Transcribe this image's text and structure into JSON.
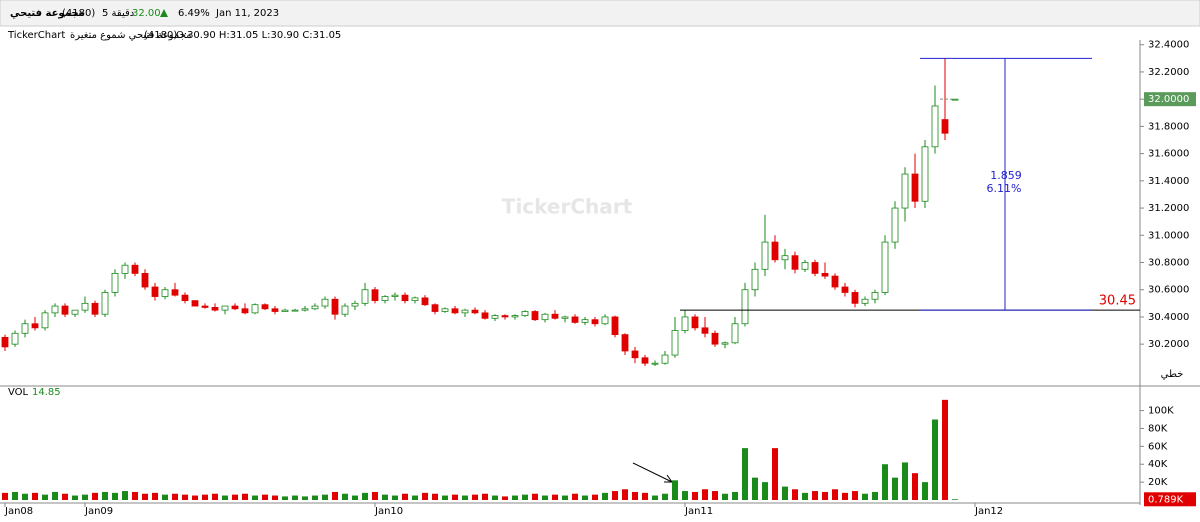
{
  "header": {
    "name": "مجموعة فتيحي",
    "code": "(4180)",
    "interval": "5 دقيقة",
    "price": "32.00",
    "change": "6.49%",
    "date": "Jan 11, 2023"
  },
  "info": {
    "brand": "TickerChart",
    "description": "مجموعة فتيحي شموع متغيرة",
    "code": "(4180)",
    "ohlc": "O:30.90 H:31.05 L:30.90 C:31.05"
  },
  "watermark": "TickerChart",
  "chart_data": {
    "type": "candlestick",
    "up_color": "#1a8a1a",
    "down_color": "#e00000",
    "ylim": [
      29.9,
      32.42
    ],
    "yticks": [
      {
        "value": 32.4,
        "label": "32.4000"
      },
      {
        "value": 32.2,
        "label": "32.2000"
      },
      {
        "value": 32.0,
        "label": "32.0000"
      },
      {
        "value": 31.8,
        "label": "31.8000"
      },
      {
        "value": 31.6,
        "label": "31.6000"
      },
      {
        "value": 31.4,
        "label": "31.4000"
      },
      {
        "value": 31.2,
        "label": "31.2000"
      },
      {
        "value": 31.0,
        "label": "31.0000"
      },
      {
        "value": 30.8,
        "label": "30.8000"
      },
      {
        "value": 30.6,
        "label": "30.6000"
      },
      {
        "value": 30.4,
        "label": "30.4000"
      },
      {
        "value": 30.2,
        "label": "30.2000"
      }
    ],
    "last_price": {
      "value": 32.0,
      "label": "32.0000"
    },
    "level": {
      "value": 30.45,
      "label": "30.45"
    },
    "measure": {
      "high": 32.3,
      "low": 30.45,
      "change_label": "1.859",
      "percent_label": "6.11%"
    },
    "scale_label": "خطي",
    "volume_title": "VOL",
    "volume_value": "14.85",
    "volume_ylim": [
      0,
      123000
    ],
    "volume_ticks": [
      {
        "value": 100000,
        "label": "100K"
      },
      {
        "value": 80000,
        "label": "80K"
      },
      {
        "value": 60000,
        "label": "60K"
      },
      {
        "value": 40000,
        "label": "40K"
      },
      {
        "value": 20000,
        "label": "20K"
      }
    ],
    "last_volume": {
      "value": 789,
      "label": "0.789K"
    },
    "categories": [
      "Jan08",
      null,
      null,
      null,
      null,
      null,
      null,
      null,
      "Jan09",
      null,
      null,
      null,
      null,
      null,
      null,
      null,
      null,
      null,
      null,
      null,
      null,
      null,
      null,
      null,
      null,
      null,
      null,
      null,
      null,
      null,
      null,
      null,
      null,
      null,
      null,
      null,
      null,
      "Jan10",
      null,
      null,
      null,
      null,
      null,
      null,
      null,
      null,
      null,
      null,
      null,
      null,
      null,
      null,
      null,
      null,
      null,
      null,
      null,
      null,
      null,
      null,
      null,
      null,
      null,
      null,
      null,
      null,
      null,
      null,
      "Jan11",
      null,
      null,
      null,
      null,
      null,
      null,
      null,
      null,
      null,
      null,
      null,
      null,
      null,
      null,
      null,
      null,
      null,
      null,
      null,
      null,
      null,
      null,
      null,
      null,
      null,
      null,
      null,
      null,
      "Jan12"
    ],
    "candles": [
      [
        30.25,
        30.27,
        30.15,
        30.18,
        8000
      ],
      [
        30.2,
        30.3,
        30.18,
        30.28,
        9000
      ],
      [
        30.28,
        30.38,
        30.25,
        30.35,
        7000
      ],
      [
        30.35,
        30.4,
        30.3,
        30.32,
        8000
      ],
      [
        30.32,
        30.45,
        30.3,
        30.43,
        6000
      ],
      [
        30.43,
        30.5,
        30.4,
        30.48,
        9000
      ],
      [
        30.48,
        30.5,
        30.4,
        30.42,
        7000
      ],
      [
        30.42,
        30.45,
        30.4,
        30.45,
        5000
      ],
      [
        30.45,
        30.55,
        30.43,
        30.5,
        6000
      ],
      [
        30.5,
        30.52,
        30.4,
        30.42,
        8000
      ],
      [
        30.42,
        30.6,
        30.4,
        30.58,
        9000
      ],
      [
        30.58,
        30.75,
        30.55,
        30.72,
        8000
      ],
      [
        30.72,
        30.8,
        30.68,
        30.78,
        10000
      ],
      [
        30.78,
        30.8,
        30.7,
        30.72,
        9000
      ],
      [
        30.72,
        30.75,
        30.6,
        30.62,
        7000
      ],
      [
        30.62,
        30.65,
        30.52,
        30.55,
        8000
      ],
      [
        30.55,
        30.62,
        30.53,
        30.6,
        6000
      ],
      [
        30.6,
        30.65,
        30.55,
        30.56,
        7000
      ],
      [
        30.56,
        30.58,
        30.5,
        30.52,
        6000
      ],
      [
        30.52,
        30.52,
        30.48,
        30.48,
        5000
      ],
      [
        30.48,
        30.5,
        30.46,
        30.47,
        6000
      ],
      [
        30.47,
        30.5,
        30.44,
        30.45,
        7000
      ],
      [
        30.45,
        30.48,
        30.42,
        30.48,
        5000
      ],
      [
        30.48,
        30.5,
        30.45,
        30.46,
        6000
      ],
      [
        30.46,
        30.5,
        30.42,
        30.43,
        7000
      ],
      [
        30.43,
        30.5,
        30.42,
        30.49,
        5000
      ],
      [
        30.49,
        30.5,
        30.45,
        30.46,
        6000
      ],
      [
        30.46,
        30.48,
        30.42,
        30.44,
        5000
      ],
      [
        30.44,
        30.46,
        30.44,
        30.45,
        4000
      ],
      [
        30.45,
        30.46,
        30.44,
        30.45,
        5000
      ],
      [
        30.45,
        30.48,
        30.44,
        30.46,
        4000
      ],
      [
        30.46,
        30.5,
        30.45,
        30.48,
        5000
      ],
      [
        30.48,
        30.55,
        30.46,
        30.53,
        6000
      ],
      [
        30.53,
        30.55,
        30.38,
        30.42,
        9000
      ],
      [
        30.42,
        30.5,
        30.4,
        30.48,
        7000
      ],
      [
        30.48,
        30.52,
        30.45,
        30.5,
        5000
      ],
      [
        30.5,
        30.65,
        30.48,
        30.6,
        8000
      ],
      [
        30.6,
        30.62,
        30.5,
        30.52,
        9000
      ],
      [
        30.52,
        30.56,
        30.5,
        30.55,
        6000
      ],
      [
        30.55,
        30.58,
        30.52,
        30.56,
        5000
      ],
      [
        30.56,
        30.58,
        30.5,
        30.52,
        7000
      ],
      [
        30.52,
        30.55,
        30.5,
        30.54,
        5000
      ],
      [
        30.54,
        30.56,
        30.48,
        30.49,
        8000
      ],
      [
        30.49,
        30.5,
        30.42,
        30.44,
        7000
      ],
      [
        30.44,
        30.47,
        30.43,
        30.46,
        5000
      ],
      [
        30.46,
        30.48,
        30.42,
        30.43,
        6000
      ],
      [
        30.43,
        30.46,
        30.4,
        30.45,
        5000
      ],
      [
        30.45,
        30.47,
        30.42,
        30.43,
        6000
      ],
      [
        30.43,
        30.45,
        30.38,
        30.39,
        7000
      ],
      [
        30.39,
        30.42,
        30.37,
        30.41,
        5000
      ],
      [
        30.41,
        30.42,
        30.38,
        30.4,
        4000
      ],
      [
        30.4,
        30.42,
        30.38,
        30.41,
        5000
      ],
      [
        30.41,
        30.45,
        30.4,
        30.44,
        6000
      ],
      [
        30.44,
        30.45,
        30.37,
        30.38,
        7000
      ],
      [
        30.38,
        30.43,
        30.36,
        30.42,
        5000
      ],
      [
        30.42,
        30.45,
        30.38,
        30.39,
        6000
      ],
      [
        30.39,
        30.41,
        30.36,
        30.4,
        5000
      ],
      [
        30.4,
        30.42,
        30.35,
        30.36,
        7000
      ],
      [
        30.36,
        30.4,
        30.34,
        30.38,
        5000
      ],
      [
        30.38,
        30.4,
        30.33,
        30.35,
        6000
      ],
      [
        30.35,
        30.42,
        30.34,
        30.4,
        8000
      ],
      [
        30.4,
        30.41,
        30.25,
        30.27,
        10000
      ],
      [
        30.27,
        30.28,
        30.12,
        30.15,
        12000
      ],
      [
        30.15,
        30.18,
        30.06,
        30.1,
        9000
      ],
      [
        30.1,
        30.12,
        30.04,
        30.06,
        8000
      ],
      [
        30.06,
        30.08,
        30.04,
        30.06,
        5000
      ],
      [
        30.06,
        30.15,
        30.05,
        30.12,
        7000
      ],
      [
        30.12,
        30.4,
        30.1,
        30.3,
        22000
      ],
      [
        30.3,
        30.45,
        30.28,
        30.4,
        10000
      ],
      [
        30.4,
        30.42,
        30.3,
        30.32,
        9000
      ],
      [
        30.32,
        30.4,
        30.25,
        30.28,
        12000
      ],
      [
        30.28,
        30.3,
        30.18,
        30.2,
        10000
      ],
      [
        30.2,
        30.22,
        30.17,
        30.21,
        7000
      ],
      [
        30.21,
        30.4,
        30.2,
        30.35,
        9000
      ],
      [
        30.35,
        30.65,
        30.33,
        30.6,
        58000
      ],
      [
        30.6,
        30.8,
        30.55,
        30.75,
        25000
      ],
      [
        30.75,
        31.15,
        30.7,
        30.95,
        20000
      ],
      [
        30.95,
        31.0,
        30.8,
        30.82,
        58000
      ],
      [
        30.82,
        30.9,
        30.75,
        30.85,
        15000
      ],
      [
        30.85,
        30.88,
        30.72,
        30.75,
        12000
      ],
      [
        30.75,
        30.82,
        30.73,
        30.8,
        8000
      ],
      [
        30.8,
        30.82,
        30.7,
        30.72,
        10000
      ],
      [
        30.72,
        30.8,
        30.68,
        30.7,
        9000
      ],
      [
        30.7,
        30.72,
        30.6,
        30.62,
        12000
      ],
      [
        30.62,
        30.65,
        30.55,
        30.58,
        8000
      ],
      [
        30.58,
        30.6,
        30.47,
        30.5,
        10000
      ],
      [
        30.5,
        30.55,
        30.48,
        30.53,
        7000
      ],
      [
        30.53,
        30.6,
        30.5,
        30.58,
        9000
      ],
      [
        30.58,
        31.0,
        30.56,
        30.95,
        40000
      ],
      [
        30.95,
        31.25,
        30.9,
        31.2,
        25000
      ],
      [
        31.2,
        31.5,
        31.1,
        31.45,
        42000
      ],
      [
        31.45,
        31.6,
        31.2,
        31.25,
        30000
      ],
      [
        31.25,
        31.7,
        31.2,
        31.65,
        20000
      ],
      [
        31.65,
        32.1,
        31.6,
        31.95,
        90000
      ],
      [
        31.85,
        32.3,
        31.7,
        31.75,
        112000
      ],
      [
        32.0,
        32.0,
        32.0,
        32.0,
        789
      ]
    ]
  }
}
